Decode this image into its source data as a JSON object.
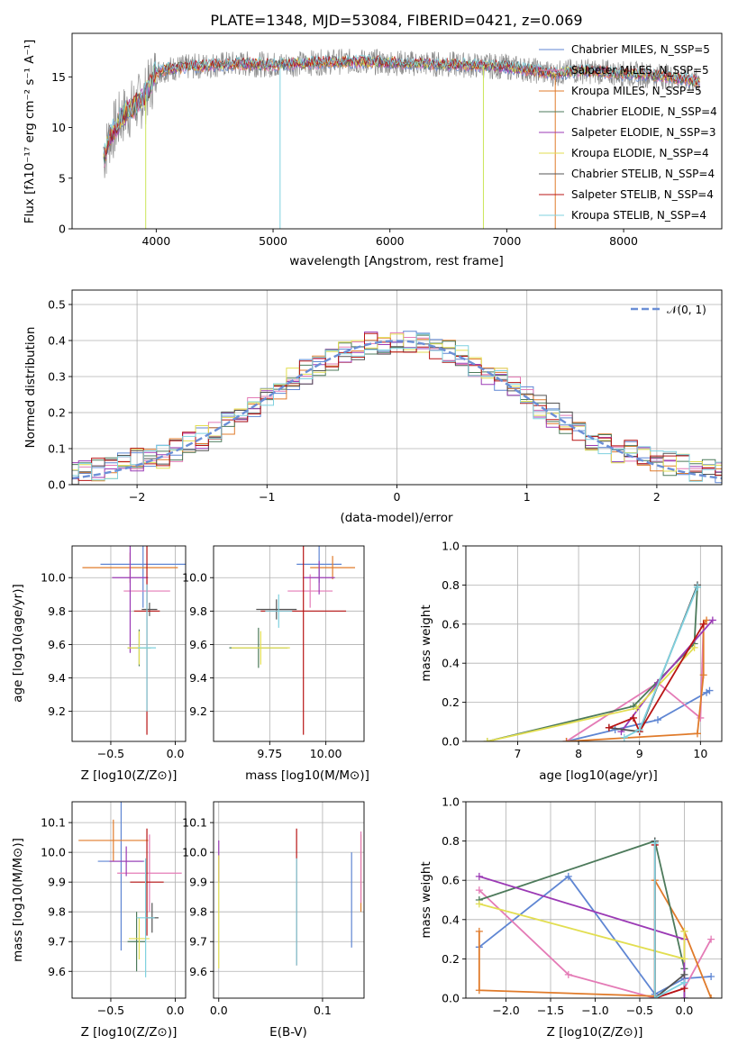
{
  "colors": {
    "c0": "#5f86d3",
    "c1": "#e47bb6",
    "c2": "#e07b2b",
    "c3": "#4d7a5b",
    "c4": "#9b3ab5",
    "c5": "#e2de51",
    "c6": "#545454",
    "c7": "#b81414",
    "c8": "#7fd1df",
    "normal": "#6b8fd6",
    "grey": "#8a8a8a",
    "lime": "#cbe55a"
  },
  "chart_data": [
    {
      "type": "line",
      "title": "PLATE=1348, MJD=53084, FIBERID=0421, z=0.069",
      "xlabel": "wavelength [Angstrom, rest frame]",
      "ylabel": "Flux [fλ10⁻¹⁷ erg cm⁻² s⁻¹ A⁻¹]",
      "xlim": [
        3280,
        8840
      ],
      "ylim": [
        0,
        19.3
      ],
      "xticks": [
        "4000",
        "5000",
        "6000",
        "7000",
        "8000"
      ],
      "yticks": [
        "0",
        "5",
        "10",
        "15"
      ],
      "grid": false,
      "legend": "top-right",
      "series": [
        {
          "name": "Chabrier MILES, N_SSP=5",
          "color": "c0"
        },
        {
          "name": "Salpeter MILES, N_SSP=5",
          "color": "c1"
        },
        {
          "name": "Kroupa MILES, N_SSP=5",
          "color": "c2"
        },
        {
          "name": "Chabrier ELODIE, N_SSP=4",
          "color": "c3"
        },
        {
          "name": "Salpeter ELODIE, N_SSP=3",
          "color": "c4"
        },
        {
          "name": "Kroupa ELODIE, N_SSP=4",
          "color": "c5"
        },
        {
          "name": "Chabrier STELIB, N_SSP=4",
          "color": "c6"
        },
        {
          "name": "Salpeter STELIB, N_SSP=4",
          "color": "c7"
        },
        {
          "name": "Kroupa STELIB, N_SSP=4",
          "color": "c8"
        }
      ],
      "envelope": {
        "x": [
          3550,
          3600,
          3700,
          3800,
          3900,
          4000,
          4100,
          4300,
          4500,
          4700,
          5000,
          5200,
          5500,
          5800,
          6000,
          6300,
          6600,
          6800,
          7000,
          7200,
          7400,
          7600,
          7800,
          8000,
          8200,
          8400,
          8650
        ],
        "y": [
          7,
          9,
          11,
          12,
          13,
          15.5,
          15.8,
          16,
          16.2,
          16.3,
          16.2,
          16.3,
          16.5,
          16.5,
          16.4,
          16.3,
          16.2,
          16.1,
          16,
          15.7,
          15.3,
          15.6,
          15.5,
          15.3,
          15.2,
          15.0,
          14.5
        ]
      }
    },
    {
      "type": "line",
      "xlabel": "(data-model)/error",
      "ylabel": "Normed distribution",
      "xlim": [
        -2.5,
        2.5
      ],
      "ylim": [
        0,
        0.54
      ],
      "xticks": [
        "−2",
        "−1",
        "0",
        "1",
        "2"
      ],
      "yticks": [
        "0.0",
        "0.1",
        "0.2",
        "0.3",
        "0.4",
        "0.5"
      ],
      "grid": true,
      "legend": "top-right",
      "legend_label": "𝒩(0, 1)",
      "normal_curve": {
        "mean": 0,
        "sigma": 1
      }
    },
    {
      "type": "scatter",
      "xlabel": "Z [log10(Z/Z⊙)]",
      "ylabel": "age  [log10(age/yr)]",
      "xlim": [
        -0.8,
        0.08
      ],
      "ylim": [
        9.02,
        10.19
      ],
      "xticks": [
        "−0.5",
        "0.0"
      ],
      "yticks": [
        "9.2",
        "9.4",
        "9.6",
        "9.8",
        "10.0"
      ],
      "grid": true,
      "points": [
        {
          "x": -0.25,
          "y": 10.08,
          "xerr": 0.33,
          "yerr": 0.26,
          "color": "c0"
        },
        {
          "x": -0.35,
          "y": 10.06,
          "xerr": 0.37,
          "yerr": 0.09,
          "color": "c2"
        },
        {
          "x": -0.22,
          "y": 9.92,
          "xerr": 0.18,
          "yerr": 0.07,
          "color": "c1"
        },
        {
          "x": -0.35,
          "y": 10.0,
          "xerr": 0.14,
          "yerr": 0.45,
          "color": "c4"
        },
        {
          "x": -0.28,
          "y": 9.58,
          "xerr": 0.09,
          "yerr": 0.11,
          "color": "c3"
        },
        {
          "x": -0.28,
          "y": 9.58,
          "xerr": 0.09,
          "yerr": 0.1,
          "color": "c5"
        },
        {
          "x": -0.2,
          "y": 9.81,
          "xerr": 0.06,
          "yerr": 0.04,
          "color": "c6"
        },
        {
          "x": -0.22,
          "y": 9.8,
          "xerr": 0.1,
          "yerr": 0.74,
          "color": "c7"
        },
        {
          "x": -0.22,
          "y": 9.58,
          "xerr": 0.07,
          "yerr": 0.38,
          "color": "c8"
        }
      ]
    },
    {
      "type": "scatter",
      "xlabel": "mass [log10(M/M⊙)]",
      "ylabel": "",
      "xlim": [
        9.5,
        10.17
      ],
      "ylim": [
        9.02,
        10.19
      ],
      "xticks": [
        "9.75",
        "10.00"
      ],
      "yticks": [
        "9.2",
        "9.4",
        "9.6",
        "9.8",
        "10.0"
      ],
      "grid": true,
      "points": [
        {
          "x": 9.97,
          "y": 10.08,
          "xerr": 0.1,
          "yerr": 0.11,
          "color": "c0"
        },
        {
          "x": 10.03,
          "y": 10.06,
          "xerr": 0.1,
          "yerr": 0.07,
          "color": "c2"
        },
        {
          "x": 9.93,
          "y": 9.92,
          "xerr": 0.1,
          "yerr": 0.1,
          "color": "c1"
        },
        {
          "x": 9.97,
          "y": 10.0,
          "xerr": 0.07,
          "yerr": 0.1,
          "color": "c4"
        },
        {
          "x": 9.7,
          "y": 9.58,
          "xerr": 0.13,
          "yerr": 0.12,
          "color": "c3"
        },
        {
          "x": 9.71,
          "y": 9.58,
          "xerr": 0.13,
          "yerr": 0.1,
          "color": "c5"
        },
        {
          "x": 9.78,
          "y": 9.81,
          "xerr": 0.09,
          "yerr": 0.06,
          "color": "c6"
        },
        {
          "x": 9.9,
          "y": 9.8,
          "xerr": 0.19,
          "yerr": 0.74,
          "color": "c7"
        },
        {
          "x": 9.79,
          "y": 9.8,
          "xerr": 0.06,
          "yerr": 0.1,
          "color": "c8"
        }
      ]
    },
    {
      "type": "line",
      "xlabel": "age  [log10(age/yr)]",
      "ylabel": "mass weight",
      "xlim": [
        6.15,
        10.35
      ],
      "ylim": [
        0,
        1.0
      ],
      "xticks": [
        "7",
        "8",
        "9",
        "10"
      ],
      "yticks": [
        "0.0",
        "0.2",
        "0.4",
        "0.6",
        "0.8",
        "1.0"
      ],
      "grid": true,
      "series": [
        {
          "color": "c0",
          "points": [
            [
              7.8,
              0.0
            ],
            [
              8.6,
              0.06
            ],
            [
              9.3,
              0.11
            ],
            [
              10.1,
              0.25
            ],
            [
              10.15,
              0.26
            ]
          ]
        },
        {
          "color": "c1",
          "points": [
            [
              7.8,
              0.0
            ],
            [
              9.3,
              0.3
            ],
            [
              10.0,
              0.12
            ],
            [
              10.05,
              0.6
            ]
          ]
        },
        {
          "color": "c2",
          "points": [
            [
              7.8,
              0.0
            ],
            [
              9.95,
              0.04
            ],
            [
              10.05,
              0.34
            ],
            [
              10.05,
              0.6
            ],
            [
              10.1,
              0.62
            ]
          ]
        },
        {
          "color": "c3",
          "points": [
            [
              6.5,
              0.0
            ],
            [
              8.9,
              0.18
            ],
            [
              9.9,
              0.5
            ],
            [
              9.95,
              0.79
            ]
          ]
        },
        {
          "color": "c4",
          "points": [
            [
              8.7,
              0.05
            ],
            [
              9.3,
              0.3
            ],
            [
              10.2,
              0.62
            ]
          ]
        },
        {
          "color": "c5",
          "points": [
            [
              6.5,
              0.0
            ],
            [
              8.95,
              0.17
            ],
            [
              9.9,
              0.48
            ]
          ]
        },
        {
          "color": "c6",
          "points": [
            [
              8.5,
              0.07
            ],
            [
              9.0,
              0.05
            ],
            [
              9.95,
              0.8
            ]
          ]
        },
        {
          "color": "c7",
          "points": [
            [
              8.5,
              0.07
            ],
            [
              8.9,
              0.12
            ],
            [
              9.0,
              0.05
            ],
            [
              10.05,
              0.6
            ]
          ]
        },
        {
          "color": "c8",
          "points": [
            [
              8.75,
              0.02
            ],
            [
              9.0,
              0.06
            ],
            [
              9.95,
              0.79
            ]
          ]
        }
      ]
    },
    {
      "type": "scatter",
      "xlabel": "Z [log10(Z/Z⊙)]",
      "ylabel": "mass [log10(M/M⊙)]",
      "xlim": [
        -0.8,
        0.08
      ],
      "ylim": [
        9.51,
        10.17
      ],
      "xticks": [
        "−0.5",
        "0.0"
      ],
      "yticks": [
        "9.6",
        "9.7",
        "9.8",
        "9.9",
        "10.0",
        "10.1"
      ],
      "grid": true,
      "points": [
        {
          "x": -0.42,
          "y": 9.97,
          "xerr": 0.18,
          "yerr": 0.3,
          "color": "c0"
        },
        {
          "x": -0.48,
          "y": 10.04,
          "xerr": 0.27,
          "yerr": 0.07,
          "color": "c2"
        },
        {
          "x": -0.2,
          "y": 9.93,
          "xerr": 0.25,
          "yerr": 0.13,
          "color": "c1"
        },
        {
          "x": -0.38,
          "y": 9.97,
          "xerr": 0.13,
          "yerr": 0.05,
          "color": "c4"
        },
        {
          "x": -0.3,
          "y": 9.7,
          "xerr": 0.07,
          "yerr": 0.1,
          "color": "c3"
        },
        {
          "x": -0.28,
          "y": 9.71,
          "xerr": 0.08,
          "yerr": 0.07,
          "color": "c5"
        },
        {
          "x": -0.18,
          "y": 9.78,
          "xerr": 0.05,
          "yerr": 0.05,
          "color": "c6"
        },
        {
          "x": -0.22,
          "y": 9.9,
          "xerr": 0.13,
          "yerr": 0.18,
          "color": "c7"
        },
        {
          "x": -0.23,
          "y": 9.78,
          "xerr": 0.07,
          "yerr": 0.2,
          "color": "c8"
        }
      ]
    },
    {
      "type": "scatter",
      "xlabel": "E(B-V)",
      "ylabel": "",
      "xlim": [
        -0.005,
        0.14
      ],
      "ylim": [
        9.51,
        10.17
      ],
      "xticks": [
        "0.0",
        "0.1"
      ],
      "yticks": [
        "9.6",
        "9.7",
        "9.8",
        "9.9",
        "10.0",
        "10.1"
      ],
      "grid": true,
      "points": [
        {
          "x": 0.0,
          "y": 9.97,
          "xerr": 0,
          "yerr": 0.07,
          "color": "c4"
        },
        {
          "x": 0.0,
          "y": 9.8,
          "xerr": 0,
          "yerr": 0.19,
          "color": "c5"
        },
        {
          "x": 0.075,
          "y": 9.85,
          "xerr": 0,
          "yerr": 0.23,
          "color": "c7"
        },
        {
          "x": 0.075,
          "y": 9.8,
          "xerr": 0,
          "yerr": 0.18,
          "color": "c8"
        },
        {
          "x": 0.128,
          "y": 9.84,
          "xerr": 0,
          "yerr": 0.16,
          "color": "c0"
        },
        {
          "x": 0.137,
          "y": 9.93,
          "xerr": 0,
          "yerr": 0.13,
          "color": "c2"
        },
        {
          "x": 0.137,
          "y": 9.95,
          "xerr": 0,
          "yerr": 0.12,
          "color": "c1"
        }
      ]
    },
    {
      "type": "line",
      "xlabel": "Z [log10(Z/Z⊙)]",
      "ylabel": "mass weight",
      "xlim": [
        -2.45,
        0.42
      ],
      "ylim": [
        0,
        1.0
      ],
      "xticks": [
        "−2.0",
        "−1.5",
        "−1.0",
        "−0.5",
        "0.0"
      ],
      "yticks": [
        "0.0",
        "0.2",
        "0.4",
        "0.6",
        "0.8",
        "1.0"
      ],
      "grid": true,
      "series": [
        {
          "color": "c0",
          "points": [
            [
              -2.3,
              0.26
            ],
            [
              -1.3,
              0.62
            ],
            [
              -0.33,
              0.02
            ],
            [
              0.0,
              0.1
            ],
            [
              0.3,
              0.11
            ]
          ]
        },
        {
          "color": "c1",
          "points": [
            [
              -2.3,
              0.55
            ],
            [
              -1.3,
              0.12
            ],
            [
              -0.33,
              0.0
            ],
            [
              0.0,
              0.05
            ],
            [
              0.3,
              0.3
            ]
          ]
        },
        {
          "color": "c2",
          "points": [
            [
              -2.3,
              0.34
            ],
            [
              -2.3,
              0.04
            ],
            [
              -0.33,
              0.01
            ],
            [
              -0.33,
              0.6
            ],
            [
              0.0,
              0.34
            ],
            [
              0.3,
              0.0
            ]
          ]
        },
        {
          "color": "c3",
          "points": [
            [
              -2.3,
              0.5
            ],
            [
              -0.33,
              0.8
            ],
            [
              0.0,
              0.15
            ],
            [
              0.0,
              0.0
            ]
          ]
        },
        {
          "color": "c4",
          "points": [
            [
              -2.3,
              0.62
            ],
            [
              0.0,
              0.3
            ],
            [
              0.0,
              0.0
            ]
          ]
        },
        {
          "color": "c5",
          "points": [
            [
              -2.3,
              0.48
            ],
            [
              0.0,
              0.2
            ],
            [
              0.0,
              0.34
            ]
          ]
        },
        {
          "color": "c6",
          "points": [
            [
              -0.33,
              0.8
            ],
            [
              -0.33,
              0.0
            ],
            [
              0.0,
              0.12
            ]
          ]
        },
        {
          "color": "c7",
          "points": [
            [
              -0.33,
              0.78
            ],
            [
              -0.33,
              0.0
            ],
            [
              0.0,
              0.05
            ]
          ]
        },
        {
          "color": "c8",
          "points": [
            [
              -0.33,
              0.79
            ],
            [
              -0.33,
              0.0
            ],
            [
              0.0,
              0.08
            ]
          ]
        }
      ]
    }
  ]
}
